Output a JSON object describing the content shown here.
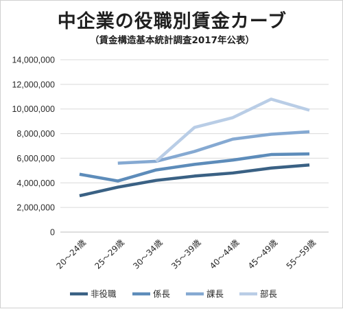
{
  "title": "中企業の役職別賃金カーブ",
  "subtitle": "（賃金構造基本統計調査2017年公表）",
  "chart_data": {
    "type": "line",
    "title": "中企業の役職別賃金カーブ",
    "subtitle": "（賃金構造基本統計調査2017年公表）",
    "categories": [
      "20～24歳",
      "25～29歳",
      "30～34歳",
      "35～39歳",
      "40～44歳",
      "45～49歳",
      "55～59歳"
    ],
    "ylim": [
      0,
      14000000
    ],
    "yticks": [
      0,
      2000000,
      4000000,
      6000000,
      8000000,
      10000000,
      12000000,
      14000000
    ],
    "ytick_labels": [
      "0",
      "2,000,000",
      "4,000,000",
      "6,000,000",
      "8,000,000",
      "10,000,000",
      "12,000,000",
      "14,000,000"
    ],
    "grid": true,
    "legend_position": "bottom",
    "series": [
      {
        "name": "非役職",
        "color": "#3a6184",
        "values": [
          2950000,
          3650000,
          4200000,
          4550000,
          4800000,
          5200000,
          5450000
        ]
      },
      {
        "name": "係長",
        "color": "#5d8cba",
        "values": [
          4700000,
          4150000,
          5050000,
          5500000,
          5850000,
          6300000,
          6350000
        ]
      },
      {
        "name": "課長",
        "color": "#85a9d2",
        "values": [
          null,
          5600000,
          5750000,
          6550000,
          7550000,
          7950000,
          8150000
        ]
      },
      {
        "name": "部長",
        "color": "#b9cde6",
        "values": [
          null,
          null,
          5750000,
          8500000,
          9300000,
          10800000,
          9900000
        ]
      }
    ]
  }
}
